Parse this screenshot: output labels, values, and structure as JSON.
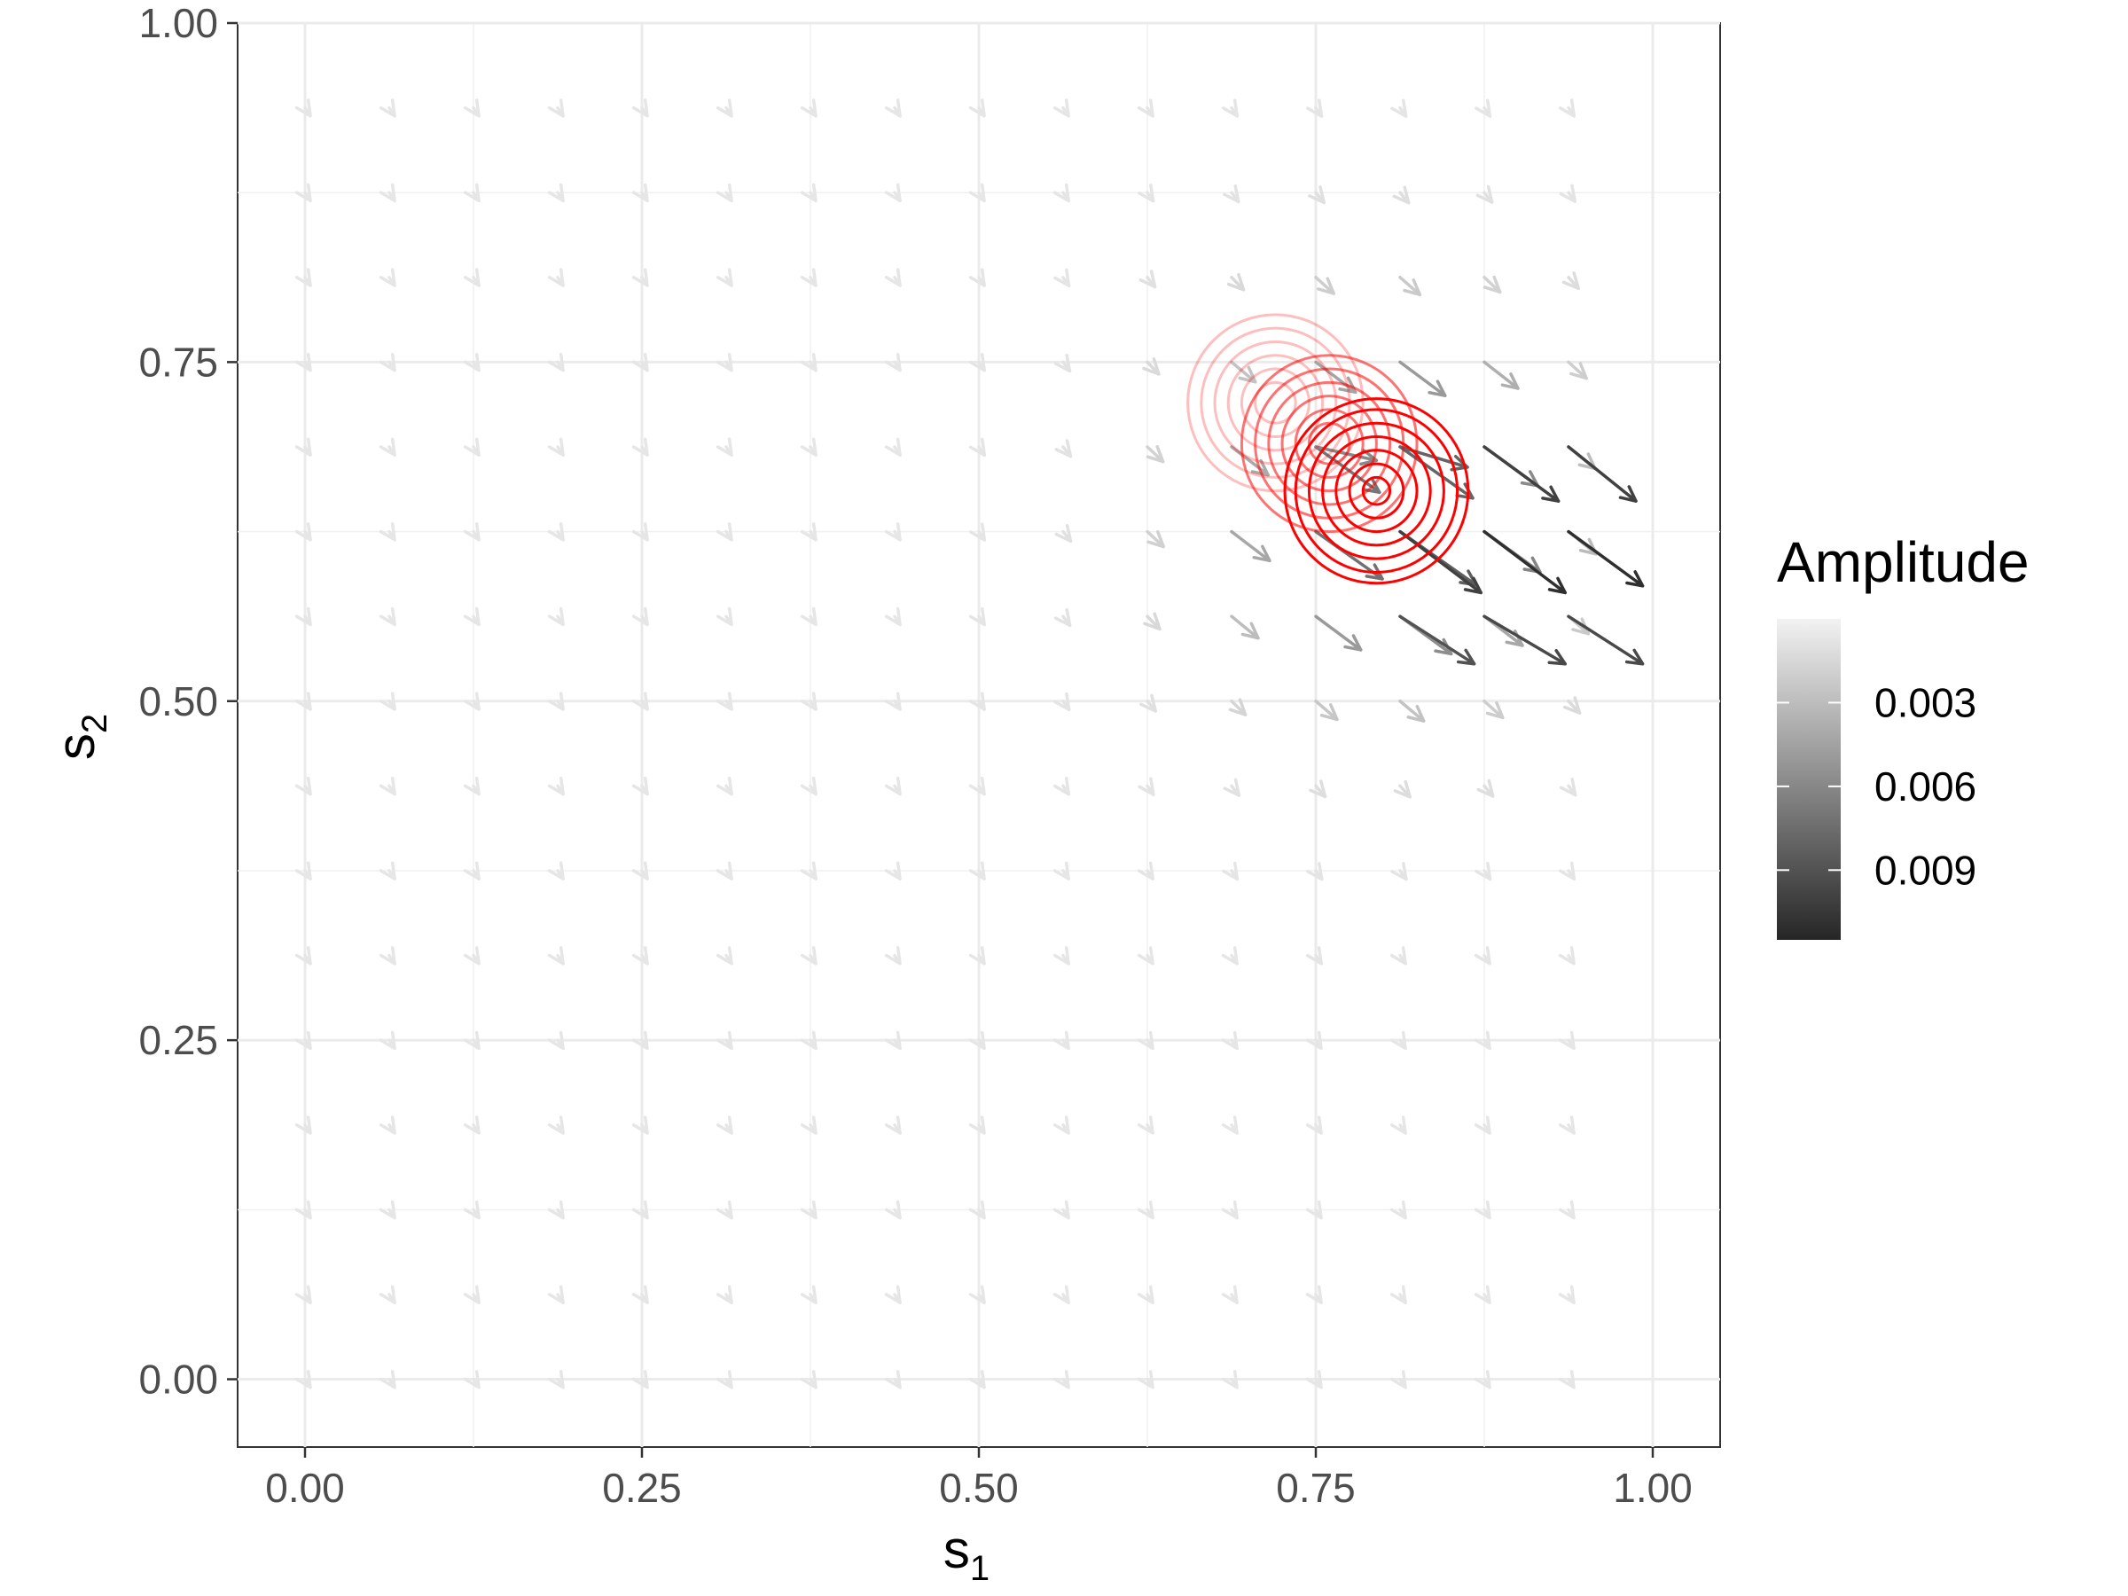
{
  "chart_data": {
    "type": "vector-field-with-contours",
    "xlabel": "s",
    "xlabel_subscript": "1",
    "ylabel": "s",
    "ylabel_subscript": "2",
    "xlim": [
      -0.05,
      1.05
    ],
    "ylim": [
      -0.05,
      1.0
    ],
    "x_ticks": [
      0.0,
      0.25,
      0.5,
      0.75,
      1.0
    ],
    "x_tick_labels": [
      "0.00",
      "0.25",
      "0.50",
      "0.75",
      "1.00"
    ],
    "y_ticks": [
      0.0,
      0.25,
      0.5,
      0.75,
      1.0
    ],
    "y_tick_labels": [
      "0.00",
      "0.25",
      "0.50",
      "0.75",
      "1.00"
    ],
    "grid": true,
    "legend": {
      "title": "Amplitude",
      "position": "right",
      "range": [
        0.0,
        0.0115
      ],
      "breaks": [
        0.003,
        0.006,
        0.009
      ],
      "break_labels": [
        "0.003",
        "0.006",
        "0.009"
      ],
      "low_color": "#f2f2f2",
      "high_color": "#262626"
    },
    "arrow_grid": {
      "x": [
        0.0,
        0.0625,
        0.125,
        0.1875,
        0.25,
        0.3125,
        0.375,
        0.4375,
        0.5,
        0.5625,
        0.625,
        0.6875,
        0.75,
        0.8125,
        0.875,
        0.9375
      ],
      "y": [
        0.0,
        0.0625,
        0.125,
        0.1875,
        0.25,
        0.3125,
        0.375,
        0.4375,
        0.5,
        0.5625,
        0.625,
        0.6875,
        0.75,
        0.8125,
        0.875,
        0.9375
      ]
    },
    "vector_field": [
      {
        "x": 0.75,
        "y": 0.6875,
        "dx": 0.045,
        "dy": -0.01,
        "amp": 0.006
      },
      {
        "x": 0.8125,
        "y": 0.6875,
        "dx": 0.05,
        "dy": -0.015,
        "amp": 0.008
      },
      {
        "x": 0.875,
        "y": 0.6875,
        "dx": 0.055,
        "dy": -0.04,
        "amp": 0.01
      },
      {
        "x": 0.9375,
        "y": 0.6875,
        "dx": 0.05,
        "dy": -0.04,
        "amp": 0.01
      },
      {
        "x": 0.8125,
        "y": 0.625,
        "dx": 0.06,
        "dy": -0.045,
        "amp": 0.01
      },
      {
        "x": 0.875,
        "y": 0.625,
        "dx": 0.06,
        "dy": -0.045,
        "amp": 0.011
      },
      {
        "x": 0.9375,
        "y": 0.625,
        "dx": 0.055,
        "dy": -0.04,
        "amp": 0.011
      },
      {
        "x": 0.8125,
        "y": 0.5625,
        "dx": 0.055,
        "dy": -0.035,
        "amp": 0.009
      },
      {
        "x": 0.875,
        "y": 0.5625,
        "dx": 0.06,
        "dy": -0.035,
        "amp": 0.0095
      },
      {
        "x": 0.9375,
        "y": 0.5625,
        "dx": 0.055,
        "dy": -0.035,
        "amp": 0.0095
      }
    ],
    "contours": [
      {
        "name": "faint",
        "center": [
          0.72,
          0.72
        ],
        "radii": [
          0.015,
          0.025,
          0.035,
          0.045,
          0.055,
          0.065
        ],
        "opacity": 0.25
      },
      {
        "name": "medium",
        "center": [
          0.76,
          0.69
        ],
        "radii": [
          0.015,
          0.025,
          0.035,
          0.045,
          0.055,
          0.065
        ],
        "opacity": 0.55
      },
      {
        "name": "strong",
        "center": [
          0.795,
          0.655
        ],
        "radii": [
          0.01,
          0.02,
          0.03,
          0.04,
          0.05,
          0.06,
          0.068
        ],
        "opacity": 1.0
      }
    ],
    "contour_color": "#ff0000"
  }
}
